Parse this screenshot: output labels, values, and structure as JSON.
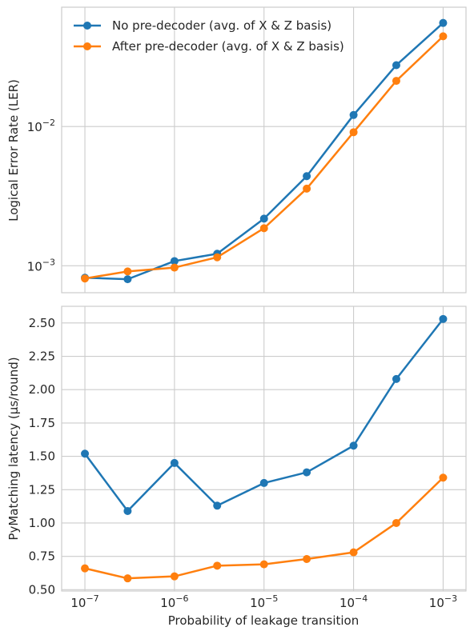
{
  "chart_data": [
    {
      "type": "line",
      "x_scale": "log",
      "y_scale": "log",
      "x": [
        1e-07,
        3e-07,
        1e-06,
        3e-06,
        1e-05,
        3e-05,
        0.0001,
        0.0003,
        0.001
      ],
      "xlim": [
        5.5e-08,
        0.0018
      ],
      "ylim": [
        0.00064,
        0.072
      ],
      "xlabel": "",
      "ylabel": "Logical Error Rate (LER)",
      "y_ticks": [
        {
          "label_base": "10",
          "label_exp": "−3"
        },
        {
          "label_base": "10",
          "label_exp": "−2"
        }
      ],
      "grid": true,
      "legend_position": "top-left",
      "series": [
        {
          "name": "No pre-decoder (avg. of X & Z basis)",
          "color": "#1f77b4",
          "values": [
            0.00082,
            0.0008,
            0.00108,
            0.00122,
            0.00218,
            0.0044,
            0.0121,
            0.0276,
            0.0555
          ]
        },
        {
          "name": "After pre-decoder (avg. of X & Z basis)",
          "color": "#ff7f0e",
          "values": [
            0.00081,
            0.00091,
            0.00097,
            0.00115,
            0.00186,
            0.00358,
            0.0091,
            0.0213,
            0.0445
          ]
        }
      ]
    },
    {
      "type": "line",
      "x_scale": "log",
      "y_scale": "linear",
      "x": [
        1e-07,
        3e-07,
        1e-06,
        3e-06,
        1e-05,
        3e-05,
        0.0001,
        0.0003,
        0.001
      ],
      "xlim": [
        5.5e-08,
        0.0018
      ],
      "ylim": [
        0.49,
        2.625
      ],
      "xlabel": "Probability of leakage transition",
      "ylabel": "PyMatching latency (μs/round)",
      "x_ticks": [
        {
          "label_base": "10",
          "label_exp": "−7"
        },
        {
          "label_base": "10",
          "label_exp": "−6"
        },
        {
          "label_base": "10",
          "label_exp": "−5"
        },
        {
          "label_base": "10",
          "label_exp": "−4"
        },
        {
          "label_base": "10",
          "label_exp": "−3"
        }
      ],
      "y_ticks": [
        "0.50",
        "0.75",
        "1.00",
        "1.25",
        "1.50",
        "1.75",
        "2.00",
        "2.25",
        "2.50"
      ],
      "grid": true,
      "series": [
        {
          "name": "No pre-decoder (avg. of X & Z basis)",
          "color": "#1f77b4",
          "values": [
            1.52,
            1.09,
            1.45,
            1.13,
            1.3,
            1.38,
            1.58,
            2.08,
            2.53
          ]
        },
        {
          "name": "After pre-decoder (avg. of X & Z basis)",
          "color": "#ff7f0e",
          "values": [
            0.66,
            0.585,
            0.6,
            0.68,
            0.69,
            0.73,
            0.78,
            1.0,
            1.34
          ]
        }
      ]
    }
  ]
}
